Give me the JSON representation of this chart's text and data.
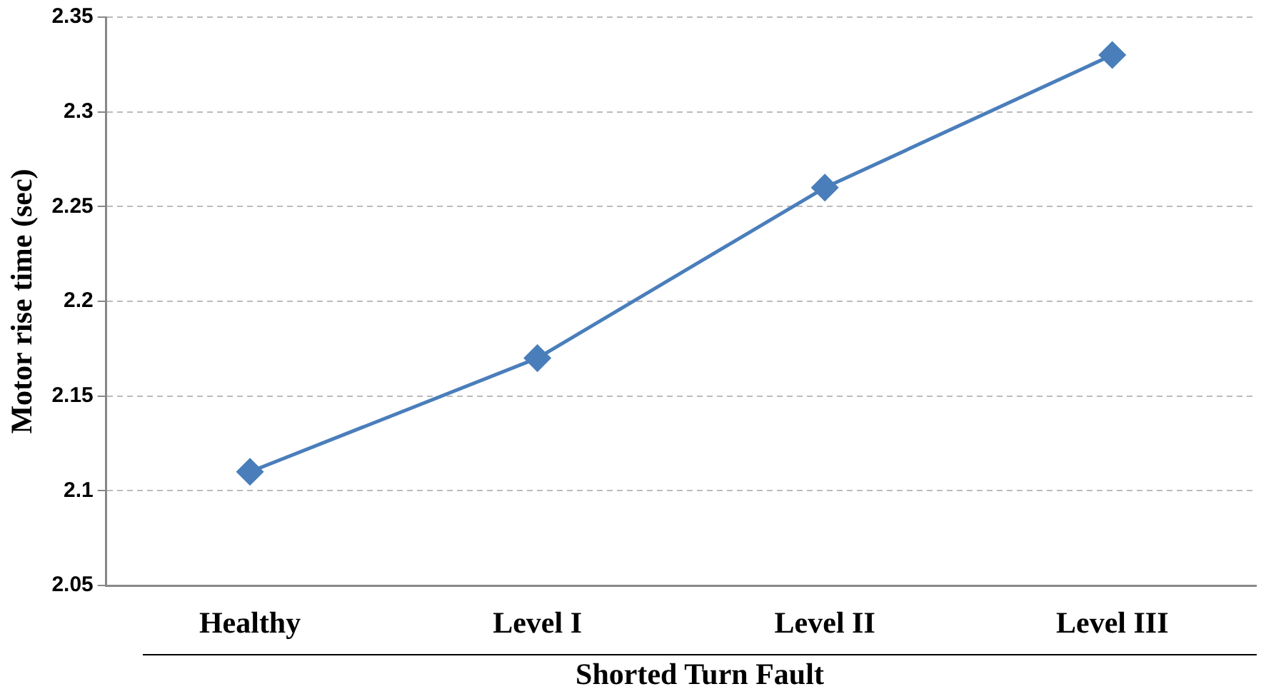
{
  "chart_data": {
    "type": "line",
    "xlabel": "Shorted Turn Fault",
    "ylabel": "Motor rise time (sec)",
    "categories": [
      "Healthy",
      "Level I",
      "Level II",
      "Level III"
    ],
    "series": [
      {
        "color": "#4a7ebb",
        "values": [
          2.11,
          2.17,
          2.26,
          2.33
        ]
      }
    ],
    "ylim": [
      2.05,
      2.35
    ],
    "yticks": [
      2.05,
      2.1,
      2.15,
      2.2,
      2.25,
      2.3,
      2.35
    ],
    "grid": "y",
    "legend": false,
    "marker": "diamond",
    "line_style": "solid"
  }
}
